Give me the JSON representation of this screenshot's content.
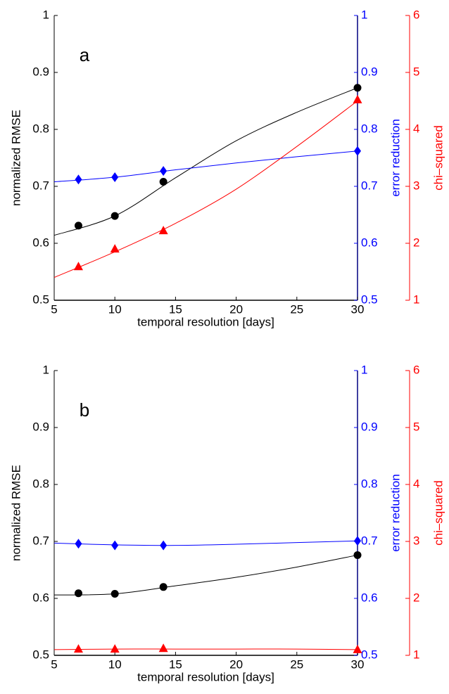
{
  "chart_data": [
    {
      "type": "line",
      "annotation": "a",
      "xlabel": "temporal resolution [days]",
      "ylabel": "normalized RMSE",
      "y2label": "error reduction",
      "y3label": "chi–squared",
      "xlim": [
        5,
        30
      ],
      "xticks": [
        5,
        10,
        15,
        20,
        25,
        30
      ],
      "ylim": [
        0.5,
        1
      ],
      "yticks": [
        0.5,
        0.6,
        0.7,
        0.8,
        0.9,
        1
      ],
      "y2lim": [
        0.5,
        1
      ],
      "y2ticks": [
        0.5,
        0.6,
        0.7,
        0.8,
        0.9,
        1
      ],
      "y3lim": [
        1,
        6
      ],
      "y3ticks": [
        1,
        2,
        3,
        4,
        5,
        6
      ],
      "colors": {
        "y": "#000000",
        "y2": "#0000ff",
        "y3": "#ff0000"
      },
      "series": [
        {
          "color": "#000000",
          "marker": "none",
          "axis": "y",
          "x": [
            5,
            10,
            15,
            20,
            25,
            30
          ],
          "values": [
            0.614,
            0.648,
            0.715,
            0.78,
            0.83,
            0.873
          ]
        },
        {
          "color": "#0000ff",
          "marker": "none",
          "axis": "y2",
          "x": [
            5,
            10,
            15,
            20,
            25,
            30
          ],
          "values": [
            0.708,
            0.716,
            0.729,
            0.741,
            0.752,
            0.762
          ]
        },
        {
          "color": "#ff0000",
          "marker": "none",
          "axis": "y3",
          "x": [
            5,
            10,
            15,
            20,
            25,
            30
          ],
          "values": [
            1.4,
            1.85,
            2.35,
            2.95,
            3.7,
            4.5
          ]
        },
        {
          "color": "#000000",
          "marker": "o",
          "axis": "y",
          "x": [
            7,
            10,
            14,
            30
          ],
          "values": [
            0.631,
            0.648,
            0.708,
            0.873
          ]
        },
        {
          "color": "#0000ff",
          "marker": "d",
          "axis": "y2",
          "x": [
            7,
            10,
            14,
            30
          ],
          "values": [
            0.712,
            0.716,
            0.727,
            0.762
          ]
        },
        {
          "color": "#ff0000",
          "marker": "^",
          "axis": "y3",
          "x": [
            7,
            10,
            14,
            30
          ],
          "values": [
            1.59,
            1.9,
            2.22,
            4.52
          ]
        }
      ]
    },
    {
      "type": "line",
      "annotation": "b",
      "xlabel": "temporal resolution [days]",
      "ylabel": "normalized RMSE",
      "y2label": "error reduction",
      "y3label": "chi–squared",
      "xlim": [
        5,
        30
      ],
      "xticks": [
        5,
        10,
        15,
        20,
        25,
        30
      ],
      "ylim": [
        0.5,
        1
      ],
      "yticks": [
        0.5,
        0.6,
        0.7,
        0.8,
        0.9,
        1
      ],
      "y2lim": [
        0.5,
        1
      ],
      "y2ticks": [
        0.5,
        0.6,
        0.7,
        0.8,
        0.9,
        1
      ],
      "y3lim": [
        1,
        6
      ],
      "y3ticks": [
        1,
        2,
        3,
        4,
        5,
        6
      ],
      "colors": {
        "y": "#000000",
        "y2": "#0000ff",
        "y3": "#ff0000"
      },
      "series": [
        {
          "color": "#000000",
          "marker": "none",
          "axis": "y",
          "x": [
            5,
            10,
            15,
            20,
            25,
            30
          ],
          "values": [
            0.606,
            0.608,
            0.622,
            0.637,
            0.655,
            0.676
          ]
        },
        {
          "color": "#0000ff",
          "marker": "none",
          "axis": "y2",
          "x": [
            5,
            10,
            15,
            20,
            25,
            30
          ],
          "values": [
            0.697,
            0.694,
            0.693,
            0.695,
            0.698,
            0.701
          ]
        },
        {
          "color": "#ff0000",
          "marker": "none",
          "axis": "y3",
          "x": [
            5,
            10,
            15,
            20,
            25,
            30
          ],
          "values": [
            1.1,
            1.11,
            1.11,
            1.11,
            1.11,
            1.1
          ]
        },
        {
          "color": "#000000",
          "marker": "o",
          "axis": "y",
          "x": [
            7,
            10,
            14,
            30
          ],
          "values": [
            0.609,
            0.608,
            0.62,
            0.676
          ]
        },
        {
          "color": "#0000ff",
          "marker": "d",
          "axis": "y2",
          "x": [
            7,
            10,
            14,
            30
          ],
          "values": [
            0.696,
            0.693,
            0.693,
            0.701
          ]
        },
        {
          "color": "#ff0000",
          "marker": "^",
          "axis": "y3",
          "x": [
            7,
            10,
            14,
            30
          ],
          "values": [
            1.11,
            1.11,
            1.12,
            1.1
          ]
        }
      ]
    }
  ]
}
